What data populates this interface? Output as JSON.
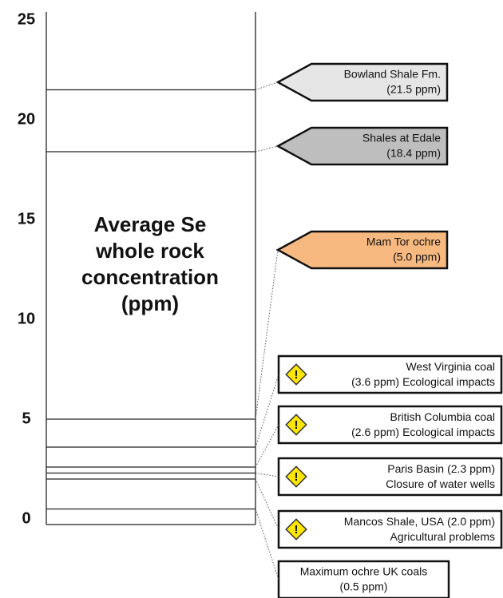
{
  "chart_data": {
    "type": "scale",
    "ylabel": [
      "Average Se",
      "whole rock",
      "concentration",
      "(ppm)"
    ],
    "ylim": [
      0,
      25
    ],
    "yticks": [
      0,
      5,
      10,
      15,
      20,
      25
    ],
    "items": [
      {
        "name": "Bowland Shale Fm.",
        "value": 21.5,
        "value_label": "(21.5 ppm)",
        "shape": "arrow",
        "color": "#e6e6e6"
      },
      {
        "name": "Shales at Edale",
        "value": 18.4,
        "value_label": "(18.4 ppm)",
        "shape": "arrow",
        "color": "#bebebe"
      },
      {
        "name": "Mam Tor ochre",
        "value": 5,
        "value_label": "(5.0 ppm)",
        "shape": "arrow",
        "color": "#f7b97f"
      },
      {
        "name": "West Virginia coal",
        "value": 3.6,
        "value_label": "(3.6 ppm)",
        "impact": "Ecological impacts",
        "shape": "box",
        "warning": true,
        "color": "#ffffff"
      },
      {
        "name": "British Columbia coal",
        "value": 2.6,
        "value_label": "(2.6 ppm)",
        "impact": "Ecological impacts",
        "shape": "box",
        "warning": true,
        "color": "#ffffff"
      },
      {
        "name": "Paris Basin",
        "value": 2.3,
        "value_label": "(2.3 ppm)",
        "impact": "Closure of water wells",
        "shape": "box",
        "warning": true,
        "color": "#ffffff"
      },
      {
        "name": "Mancos Shale, USA",
        "value": 2.0,
        "value_label": "(2.0 ppm)",
        "impact": "Agricultural problems",
        "shape": "box",
        "warning": true,
        "color": "#ffffff"
      },
      {
        "name": "Maximum ochre UK coals",
        "value": 0.5,
        "value_label": "(0.5 ppm)",
        "shape": "box",
        "warning": false,
        "color": "#ffffff"
      }
    ]
  }
}
